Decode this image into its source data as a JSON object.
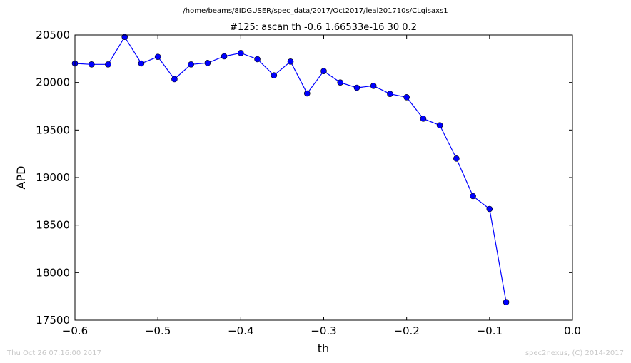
{
  "header": {
    "path": "/home/beams/8IDGUSER/spec_data/2017/Oct2017/leal201710s/CLgisaxs1"
  },
  "footer": {
    "timestamp": "Thu Oct 26 07:16:00 2017",
    "credit": "spec2nexus, (C) 2014-2017"
  },
  "chart_data": {
    "type": "line",
    "title": "#125: ascan  th -0.6 1.66533e-16  30 0.2",
    "xlabel": "th",
    "ylabel": "APD",
    "xlim": [
      -0.6,
      0.0
    ],
    "ylim": [
      17500,
      20500
    ],
    "xticks": [
      -0.6,
      -0.5,
      -0.4,
      -0.3,
      -0.2,
      -0.1,
      0.0
    ],
    "xtick_labels": [
      "−0.6",
      "−0.5",
      "−0.4",
      "−0.3",
      "−0.2",
      "−0.1",
      "0.0"
    ],
    "yticks": [
      17500,
      18000,
      18500,
      19000,
      19500,
      20000,
      20500
    ],
    "ytick_labels": [
      "17500",
      "18000",
      "18500",
      "19000",
      "19500",
      "20000",
      "20500"
    ],
    "grid": false,
    "series": [
      {
        "color": "#0000ff",
        "x": [
          -0.6,
          -0.58,
          -0.56,
          -0.54,
          -0.52,
          -0.5,
          -0.48,
          -0.46,
          -0.44,
          -0.42,
          -0.4,
          -0.38,
          -0.36,
          -0.34,
          -0.32,
          -0.3,
          -0.28,
          -0.26,
          -0.24,
          -0.22,
          -0.2,
          -0.18,
          -0.16,
          -0.14,
          -0.12,
          -0.1,
          -0.08
        ],
        "y": [
          20200,
          20190,
          20190,
          20480,
          20200,
          20270,
          20035,
          20190,
          20205,
          20275,
          20310,
          20245,
          20075,
          20220,
          19885,
          20120,
          20000,
          19945,
          19965,
          19880,
          19845,
          19620,
          19550,
          19200,
          18805,
          18670,
          17690
        ]
      }
    ]
  }
}
